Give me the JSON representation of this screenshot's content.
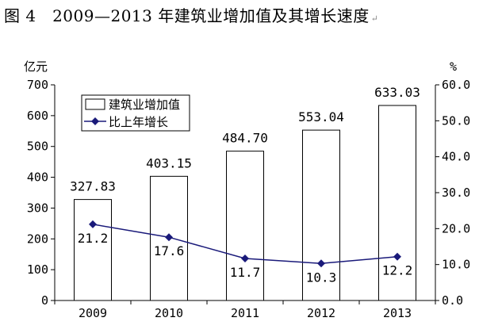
{
  "figure": {
    "title": "图 4　2009—2013 年建筑业增加值及其增长速度",
    "paragraph_mark": "↵"
  },
  "chart_data": {
    "type": "bar",
    "categories": [
      "2009",
      "2010",
      "2011",
      "2012",
      "2013"
    ],
    "series": [
      {
        "name": "建筑业增加值",
        "type": "bar",
        "axis": "left",
        "values": [
          327.83,
          403.15,
          484.7,
          553.04,
          633.03
        ],
        "labels": [
          "327.83",
          "403.15",
          "484.70",
          "553.04",
          "633.03"
        ],
        "color": "#ffffff",
        "stroke": "#000000"
      },
      {
        "name": "比上年增长",
        "type": "line",
        "axis": "right",
        "values": [
          21.2,
          17.6,
          11.7,
          10.3,
          12.2
        ],
        "labels": [
          "21.2",
          "17.6",
          "11.7",
          "10.3",
          "12.2"
        ],
        "color": "#1a1a7a",
        "marker": "diamond"
      }
    ],
    "y_left": {
      "unit": "亿元",
      "range": [
        0,
        700
      ],
      "ticks": [
        0,
        100,
        200,
        300,
        400,
        500,
        600,
        700
      ],
      "tick_labels": [
        "0",
        "100",
        "200",
        "300",
        "400",
        "500",
        "600",
        "700"
      ]
    },
    "y_right": {
      "unit": "%",
      "range": [
        0,
        60
      ],
      "ticks": [
        0,
        10,
        20,
        30,
        40,
        50,
        60
      ],
      "tick_labels": [
        "0.0",
        "10.0",
        "20.0",
        "30.0",
        "40.0",
        "50.0",
        "60.0"
      ]
    },
    "grid": false,
    "legend_position": "top-left"
  }
}
